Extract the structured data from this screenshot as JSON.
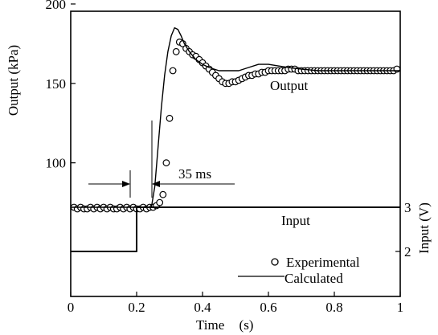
{
  "chart_data": {
    "type": "line",
    "xlabel": "Time (s)",
    "xlabel_parts": [
      "Time",
      "(s)"
    ],
    "ylabel_left": "Output (kPa)",
    "ylabel_right": "Input (V)",
    "x_ticks": [
      "0",
      "0.2",
      "0.4",
      "0.6",
      "0.8",
      "1"
    ],
    "x_tick_values": [
      0,
      0.2,
      0.4,
      0.6,
      0.8,
      1.0
    ],
    "y_left_ticks": [
      "100",
      "150",
      "200"
    ],
    "y_left_tick_values": [
      100,
      150,
      200
    ],
    "y_right_ticks": [
      "2",
      "3"
    ],
    "y_right_tick_values": [
      2,
      3
    ],
    "xlim": [
      0,
      1
    ],
    "ylim_left": [
      0,
      200
    ],
    "ylim_right": [
      1,
      3
    ],
    "grid": false,
    "legend_placement": "bottom-right",
    "annotations": {
      "output_label": "Output",
      "input_label": "Input",
      "delay_label": "35 ms"
    },
    "series": [
      {
        "name": "Experimental",
        "marker": "open-circle",
        "axis": "left",
        "x": [
          0.01,
          0.02,
          0.03,
          0.04,
          0.05,
          0.06,
          0.07,
          0.08,
          0.09,
          0.1,
          0.11,
          0.12,
          0.13,
          0.14,
          0.15,
          0.16,
          0.17,
          0.18,
          0.19,
          0.2,
          0.21,
          0.22,
          0.23,
          0.24,
          0.25,
          0.26,
          0.27,
          0.28,
          0.29,
          0.3,
          0.31,
          0.32,
          0.33,
          0.34,
          0.35,
          0.36,
          0.37,
          0.38,
          0.39,
          0.4,
          0.41,
          0.42,
          0.43,
          0.44,
          0.45,
          0.46,
          0.47,
          0.48,
          0.49,
          0.5,
          0.51,
          0.52,
          0.53,
          0.54,
          0.55,
          0.56,
          0.57,
          0.58,
          0.59,
          0.6,
          0.61,
          0.62,
          0.63,
          0.64,
          0.65,
          0.66,
          0.67,
          0.68,
          0.69,
          0.7,
          0.71,
          0.72,
          0.73,
          0.74,
          0.75,
          0.76,
          0.77,
          0.78,
          0.79,
          0.8,
          0.81,
          0.82,
          0.83,
          0.84,
          0.85,
          0.86,
          0.87,
          0.88,
          0.89,
          0.9,
          0.91,
          0.92,
          0.93,
          0.94,
          0.95,
          0.96,
          0.97,
          0.98,
          0.99
        ],
        "y": [
          72,
          71,
          72,
          71,
          71,
          72,
          71,
          72,
          71,
          72,
          71,
          72,
          71,
          71,
          72,
          71,
          72,
          71,
          72,
          71,
          71,
          72,
          71,
          72,
          72,
          73,
          75,
          80,
          100,
          128,
          158,
          170,
          176,
          175,
          172,
          170,
          168,
          167,
          165,
          163,
          161,
          159,
          157,
          155,
          153,
          151,
          150,
          150,
          151,
          151,
          152,
          153,
          154,
          155,
          155,
          156,
          156,
          157,
          157,
          158,
          158,
          158,
          158,
          158,
          158,
          159,
          159,
          159,
          158,
          158,
          158,
          158,
          158,
          158,
          158,
          158,
          158,
          158,
          158,
          158,
          158,
          158,
          158,
          158,
          158,
          158,
          158,
          158,
          158,
          158,
          158,
          158,
          158,
          158,
          158,
          158,
          158,
          158,
          159
        ]
      },
      {
        "name": "Calculated",
        "marker": "line",
        "axis": "left",
        "x": [
          0,
          0.245,
          0.255,
          0.265,
          0.275,
          0.285,
          0.295,
          0.305,
          0.315,
          0.325,
          0.335,
          0.345,
          0.36,
          0.38,
          0.4,
          0.42,
          0.45,
          0.48,
          0.51,
          0.54,
          0.57,
          0.6,
          0.63,
          0.66,
          0.7,
          0.75,
          0.8,
          0.85,
          0.9,
          0.95,
          1.0
        ],
        "y": [
          72,
          72,
          85,
          110,
          135,
          155,
          170,
          180,
          185,
          184,
          180,
          175,
          170,
          165,
          162,
          160,
          158,
          158,
          158,
          160,
          162,
          162,
          161,
          160,
          159,
          158,
          158,
          158,
          158,
          158,
          158
        ]
      },
      {
        "name": "Input",
        "marker": "step",
        "axis": "right",
        "x": [
          0,
          0.2,
          0.2,
          1.0
        ],
        "y": [
          2,
          2,
          3,
          3
        ]
      }
    ]
  }
}
